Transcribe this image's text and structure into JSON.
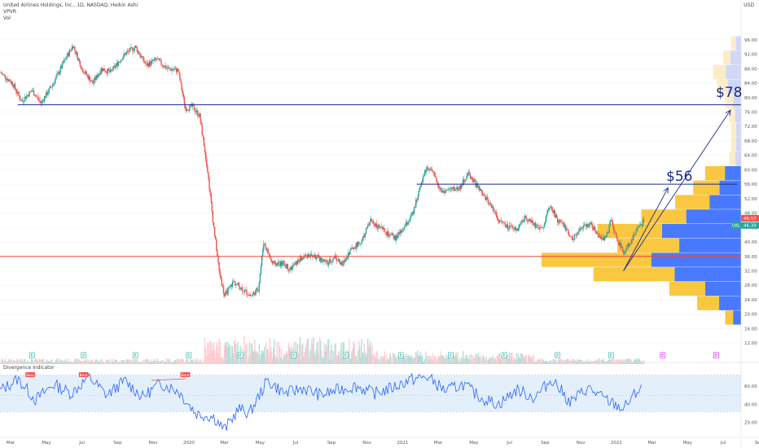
{
  "legend": {
    "title": "United Airlines Holdings, Inc., 1D, NASDAQ, Heikin Ashi",
    "line2": "VPVR",
    "line3": "Vol"
  },
  "currency": "USD",
  "oscillator": {
    "title": "Divergence Indicator",
    "yticks": [
      "60.00",
      "40.00",
      "20.00"
    ],
    "bear_label": "Bear"
  },
  "annotations": {
    "target1": "$56",
    "target2": "$78"
  },
  "price_labels": {
    "last": "46.57",
    "ual_tag": "UAL",
    "ual_value": "46.39"
  },
  "earnings_marker": "E",
  "colors": {
    "up": "#26a69a",
    "down": "#ef5350",
    "annotation": "#1b2a8c",
    "support": "#f44336",
    "osc_line": "#2962ff",
    "vp_blue": "#2962ff",
    "vp_orange": "#f7b500"
  },
  "chart_data": {
    "type": "candlestick",
    "title": "United Airlines Holdings, Inc., 1D, NASDAQ, Heikin Ashi",
    "y_axis_ticks": [
      "96.00",
      "92.00",
      "88.00",
      "84.00",
      "80.00",
      "76.00",
      "72.00",
      "68.00",
      "64.00",
      "60.00",
      "56.00",
      "52.00",
      "48.00",
      "44.00",
      "40.00",
      "36.00",
      "32.00",
      "28.00",
      "24.00",
      "20.00",
      "16.00",
      "12.00"
    ],
    "x_axis_ticks": [
      "Mar",
      "May",
      "Jul",
      "Sep",
      "Nov",
      "2020",
      "Mar",
      "May",
      "Jul",
      "Sep",
      "Nov",
      "2021",
      "Mar",
      "May",
      "Jul",
      "Sep",
      "Nov",
      "2022",
      "Mar",
      "May",
      "Jul",
      "Sep"
    ],
    "ylim": [
      10,
      98
    ],
    "price_path": [
      [
        0,
        87.0
      ],
      [
        0.7,
        84.0
      ],
      [
        1.2,
        79.0
      ],
      [
        1.8,
        82.0
      ],
      [
        2.3,
        78.5
      ],
      [
        3.0,
        84.0
      ],
      [
        3.6,
        90.0
      ],
      [
        4.1,
        94.5
      ],
      [
        4.6,
        88.0
      ],
      [
        5.2,
        84.0
      ],
      [
        5.7,
        88.0
      ],
      [
        6.2,
        87.0
      ],
      [
        7.0,
        92.0
      ],
      [
        7.6,
        94.0
      ],
      [
        8.2,
        89.0
      ],
      [
        8.8,
        90.5
      ],
      [
        9.4,
        88.0
      ],
      [
        10.0,
        87.5
      ],
      [
        10.4,
        77.0
      ],
      [
        10.8,
        77.5
      ],
      [
        11.2,
        75.0
      ],
      [
        11.6,
        62.0
      ],
      [
        12.0,
        44.0
      ],
      [
        12.3,
        32.0
      ],
      [
        12.6,
        25.0
      ],
      [
        13.1,
        29.0
      ],
      [
        13.6,
        27.0
      ],
      [
        14.1,
        25.0
      ],
      [
        14.5,
        27.0
      ],
      [
        14.8,
        40.0
      ],
      [
        15.3,
        34.0
      ],
      [
        15.9,
        34.0
      ],
      [
        16.3,
        32.5
      ],
      [
        16.8,
        35.0
      ],
      [
        17.3,
        36.5
      ],
      [
        17.9,
        35.5
      ],
      [
        18.4,
        34.0
      ],
      [
        18.8,
        36.0
      ],
      [
        19.2,
        33.5
      ],
      [
        19.7,
        38.0
      ],
      [
        20.3,
        40.0
      ],
      [
        20.8,
        46.0
      ],
      [
        21.3,
        44.0
      ],
      [
        21.8,
        42.0
      ],
      [
        22.2,
        41.0
      ],
      [
        22.7,
        44.0
      ],
      [
        23.2,
        48.0
      ],
      [
        23.6,
        56.0
      ],
      [
        24.0,
        61.0
      ],
      [
        24.4,
        58.0
      ],
      [
        24.8,
        54.0
      ],
      [
        25.3,
        54.5
      ],
      [
        25.8,
        55.0
      ],
      [
        26.3,
        59.0
      ],
      [
        26.7,
        56.0
      ],
      [
        27.1,
        53.0
      ],
      [
        27.6,
        50.0
      ],
      [
        28.0,
        46.0
      ],
      [
        28.5,
        44.0
      ],
      [
        29.0,
        43.5
      ],
      [
        29.5,
        47.0
      ],
      [
        29.9,
        45.0
      ],
      [
        30.4,
        43.5
      ],
      [
        30.9,
        50.0
      ],
      [
        31.3,
        46.0
      ],
      [
        31.7,
        44.0
      ],
      [
        32.1,
        41.0
      ],
      [
        32.6,
        43.5
      ],
      [
        33.1,
        45.0
      ],
      [
        33.6,
        42.0
      ],
      [
        34.0,
        40.5
      ],
      [
        34.3,
        46.0
      ],
      [
        34.7,
        40.0
      ],
      [
        35.0,
        37.0
      ],
      [
        35.4,
        40.0
      ],
      [
        35.8,
        44.0
      ],
      [
        36.2,
        46.0
      ]
    ],
    "horizontal_levels": [
      {
        "value": 78.0,
        "label": "$78"
      },
      {
        "value": 56.0,
        "label": "$56"
      },
      {
        "value": 36.0,
        "label": ""
      }
    ],
    "projection_arrows": [
      {
        "from": [
          35.0,
          32.0
        ],
        "to": [
          37.5,
          55.0
        ]
      },
      {
        "from": [
          35.0,
          32.0
        ],
        "to": [
          41.0,
          76.5
        ]
      }
    ],
    "volume_profile_side": "right",
    "volume_profile": [
      {
        "price": 95,
        "total": 0.05,
        "up_share": 0.5
      },
      {
        "price": 91,
        "total": 0.09,
        "up_share": 0.6
      },
      {
        "price": 87,
        "total": 0.14,
        "up_share": 0.55
      },
      {
        "price": 83,
        "total": 0.12,
        "up_share": 0.55
      },
      {
        "price": 79,
        "total": 0.08,
        "up_share": 0.5
      },
      {
        "price": 75,
        "total": 0.06,
        "up_share": 0.5
      },
      {
        "price": 71,
        "total": 0.05,
        "up_share": 0.5
      },
      {
        "price": 67,
        "total": 0.05,
        "up_share": 0.5
      },
      {
        "price": 63,
        "total": 0.06,
        "up_share": 0.5
      },
      {
        "price": 59,
        "total": 0.18,
        "up_share": 0.45
      },
      {
        "price": 55,
        "total": 0.24,
        "up_share": 0.45
      },
      {
        "price": 51,
        "total": 0.33,
        "up_share": 0.48
      },
      {
        "price": 47,
        "total": 0.5,
        "up_share": 0.55
      },
      {
        "price": 43,
        "total": 0.72,
        "up_share": 0.55
      },
      {
        "price": 39,
        "total": 0.62,
        "up_share": 0.5
      },
      {
        "price": 35,
        "total": 1.0,
        "up_share": 0.45
      },
      {
        "price": 31,
        "total": 0.74,
        "up_share": 0.45
      },
      {
        "price": 27,
        "total": 0.36,
        "up_share": 0.5
      },
      {
        "price": 23,
        "total": 0.22,
        "up_share": 0.5
      },
      {
        "price": 19,
        "total": 0.08,
        "up_share": 0.5
      }
    ],
    "earnings_positions": [
      1.8,
      4.7,
      7.6,
      10.6,
      13.5,
      16.5,
      19.4,
      22.5,
      25.3,
      28.3,
      31.3,
      34.3,
      37.2,
      40.2
    ],
    "oscillator_path": [
      [
        0,
        55
      ],
      [
        1,
        68
      ],
      [
        2,
        45
      ],
      [
        3,
        62
      ],
      [
        4,
        52
      ],
      [
        5,
        70
      ],
      [
        6,
        50
      ],
      [
        7,
        66
      ],
      [
        8,
        48
      ],
      [
        9,
        63
      ],
      [
        10,
        55
      ],
      [
        11,
        30
      ],
      [
        12,
        26
      ],
      [
        12.6,
        12
      ],
      [
        13.4,
        35
      ],
      [
        14,
        30
      ],
      [
        15,
        66
      ],
      [
        16,
        52
      ],
      [
        17,
        58
      ],
      [
        18,
        50
      ],
      [
        19,
        56
      ],
      [
        20,
        60
      ],
      [
        21,
        52
      ],
      [
        22,
        58
      ],
      [
        23,
        67
      ],
      [
        24,
        70
      ],
      [
        25,
        55
      ],
      [
        26,
        62
      ],
      [
        27,
        47
      ],
      [
        28,
        40
      ],
      [
        29,
        56
      ],
      [
        30,
        47
      ],
      [
        31,
        68
      ],
      [
        32,
        42
      ],
      [
        33,
        58
      ],
      [
        34,
        45
      ],
      [
        35,
        35
      ],
      [
        36,
        60
      ]
    ],
    "oscillator_ylim": [
      8,
      78
    ],
    "oscillator_band": [
      32,
      72
    ],
    "oscillator_midline": 50
  }
}
